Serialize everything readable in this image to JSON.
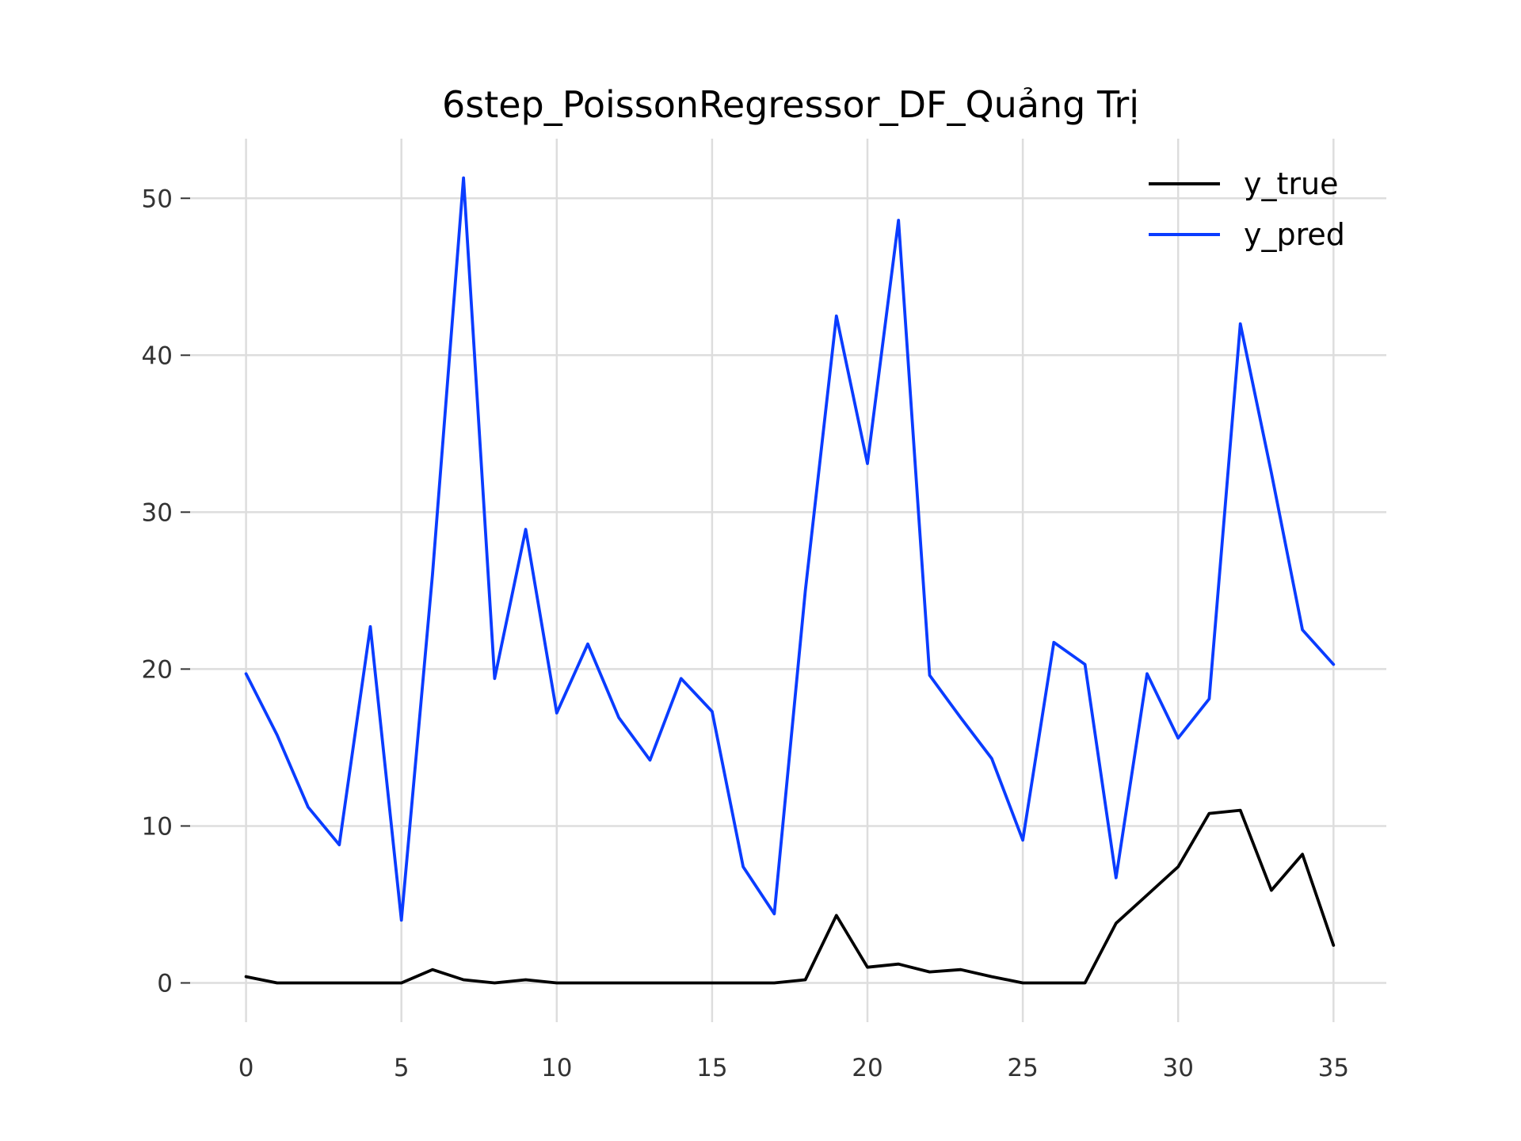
{
  "chart_data": {
    "type": "line",
    "title": "6step_PoissonRegressor_DF_Quảng Trị",
    "xlabel": "",
    "ylabel": "",
    "xlim": [
      -1.8,
      36.7
    ],
    "ylim": [
      -2.5,
      53.8
    ],
    "xticks": [
      0,
      5,
      10,
      15,
      20,
      25,
      30,
      35
    ],
    "yticks": [
      0,
      10,
      20,
      30,
      40,
      50
    ],
    "grid": true,
    "legend_position": "top-right",
    "x": [
      0,
      1,
      2,
      3,
      4,
      5,
      6,
      7,
      8,
      9,
      10,
      11,
      12,
      13,
      14,
      15,
      16,
      17,
      18,
      19,
      20,
      21,
      22,
      23,
      24,
      25,
      26,
      27,
      28,
      29,
      30,
      31,
      32,
      33,
      34,
      35
    ],
    "series": [
      {
        "name": "y_true",
        "color": "#000000",
        "values": [
          0.4,
          0,
          0,
          0,
          0,
          0,
          0.85,
          0.2,
          0,
          0.2,
          0,
          0,
          0,
          0,
          0,
          0,
          0,
          0,
          0.2,
          4.3,
          1.0,
          1.2,
          0.7,
          0.85,
          0.4,
          0,
          0,
          0,
          3.8,
          5.6,
          7.4,
          10.8,
          11.0,
          5.9,
          8.2,
          2.4
        ]
      },
      {
        "name": "y_pred",
        "color": "#0a3cff",
        "values": [
          19.7,
          15.8,
          11.2,
          8.8,
          22.7,
          4.0,
          26.0,
          51.3,
          19.4,
          28.9,
          17.2,
          21.6,
          16.9,
          14.2,
          19.4,
          17.3,
          7.4,
          4.4,
          25.0,
          42.5,
          33.1,
          48.6,
          19.6,
          16.9,
          14.3,
          9.1,
          21.7,
          20.3,
          6.7,
          19.7,
          15.6,
          18.1,
          42.0,
          32.5,
          22.5,
          20.3
        ]
      }
    ]
  }
}
